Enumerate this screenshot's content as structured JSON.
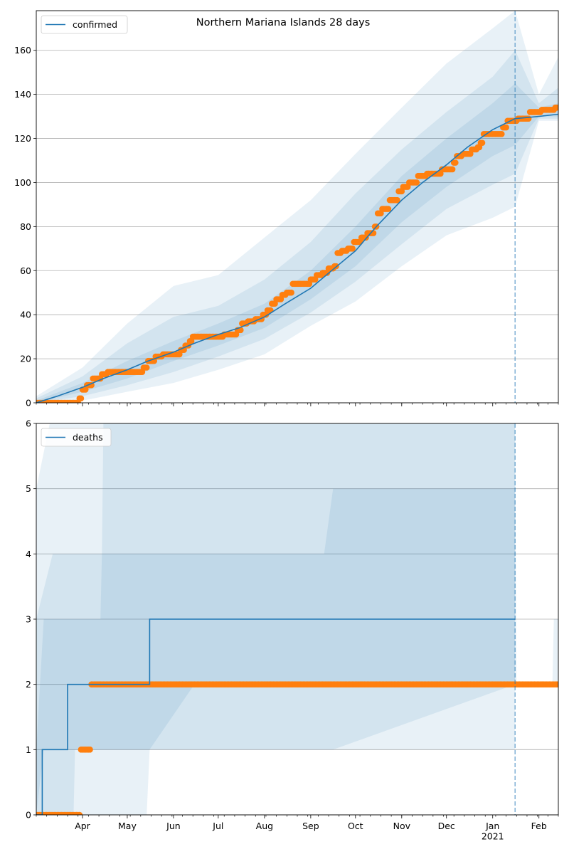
{
  "title": "Northern Mariana Islands 28 days",
  "colors": {
    "model_line": "#1f77b4",
    "observed": "#ff7f0e",
    "band": "#1f77b4",
    "grid": "#b0b0b0"
  },
  "chart_data": [
    {
      "type": "line",
      "panel": "confirmed",
      "legend": [
        "confirmed"
      ],
      "legend_position": "top-left",
      "title": "Northern Mariana Islands 28 days",
      "ylim": [
        0,
        178
      ],
      "yticks": [
        0,
        20,
        40,
        60,
        80,
        100,
        120,
        140,
        160
      ],
      "grid": "y",
      "x_range": [
        "2020-03-01",
        "2021-02-14"
      ],
      "forecast_start": "2021-01-16",
      "x_tick_labels": [
        "Apr",
        "May",
        "Jun",
        "Jul",
        "Aug",
        "Sep",
        "Oct",
        "Nov",
        "Dec",
        "Jan\n2021",
        "Feb"
      ],
      "series": [
        {
          "name": "confirmed",
          "role": "model",
          "points": [
            [
              "2020-03-01",
              0
            ],
            [
              "2020-03-15",
              3
            ],
            [
              "2020-04-01",
              7
            ],
            [
              "2020-04-15",
              11
            ],
            [
              "2020-05-01",
              15
            ],
            [
              "2020-05-15",
              19
            ],
            [
              "2020-06-01",
              23
            ],
            [
              "2020-06-15",
              27
            ],
            [
              "2020-07-01",
              31
            ],
            [
              "2020-07-15",
              34
            ],
            [
              "2020-08-01",
              39
            ],
            [
              "2020-08-15",
              45
            ],
            [
              "2020-09-01",
              52
            ],
            [
              "2020-09-15",
              60
            ],
            [
              "2020-10-01",
              69
            ],
            [
              "2020-10-15",
              80
            ],
            [
              "2020-11-01",
              92
            ],
            [
              "2020-11-15",
              100
            ],
            [
              "2020-12-01",
              108
            ],
            [
              "2020-12-15",
              116
            ],
            [
              "2021-01-01",
              124
            ],
            [
              "2021-01-16",
              129
            ],
            [
              "2021-02-01",
              130
            ],
            [
              "2021-02-14",
              131
            ]
          ]
        },
        {
          "name": "observed",
          "role": "observed",
          "points": [
            [
              "2020-03-01",
              0
            ],
            [
              "2020-03-29",
              0
            ],
            [
              "2020-03-30",
              2
            ],
            [
              "2020-04-01",
              6
            ],
            [
              "2020-04-04",
              8
            ],
            [
              "2020-04-08",
              11
            ],
            [
              "2020-04-14",
              13
            ],
            [
              "2020-04-18",
              14
            ],
            [
              "2020-05-08",
              14
            ],
            [
              "2020-05-12",
              16
            ],
            [
              "2020-05-15",
              19
            ],
            [
              "2020-05-20",
              21
            ],
            [
              "2020-05-25",
              22
            ],
            [
              "2020-06-02",
              22
            ],
            [
              "2020-06-06",
              24
            ],
            [
              "2020-06-09",
              26
            ],
            [
              "2020-06-12",
              28
            ],
            [
              "2020-06-14",
              30
            ],
            [
              "2020-07-01",
              30
            ],
            [
              "2020-07-05",
              31
            ],
            [
              "2020-07-11",
              31
            ],
            [
              "2020-07-14",
              33
            ],
            [
              "2020-07-17",
              36
            ],
            [
              "2020-07-21",
              37
            ],
            [
              "2020-07-26",
              38
            ],
            [
              "2020-07-31",
              40
            ],
            [
              "2020-08-03",
              42
            ],
            [
              "2020-08-06",
              45
            ],
            [
              "2020-08-09",
              47
            ],
            [
              "2020-08-13",
              49
            ],
            [
              "2020-08-16",
              50
            ],
            [
              "2020-08-20",
              54
            ],
            [
              "2020-08-29",
              54
            ],
            [
              "2020-09-01",
              56
            ],
            [
              "2020-09-05",
              58
            ],
            [
              "2020-09-09",
              59
            ],
            [
              "2020-09-13",
              61
            ],
            [
              "2020-09-17",
              62
            ],
            [
              "2020-09-19",
              68
            ],
            [
              "2020-09-22",
              69
            ],
            [
              "2020-09-26",
              70
            ],
            [
              "2020-09-30",
              73
            ],
            [
              "2020-10-05",
              75
            ],
            [
              "2020-10-09",
              77
            ],
            [
              "2020-10-14",
              80
            ],
            [
              "2020-10-16",
              86
            ],
            [
              "2020-10-19",
              88
            ],
            [
              "2020-10-24",
              92
            ],
            [
              "2020-10-30",
              96
            ],
            [
              "2020-11-02",
              98
            ],
            [
              "2020-11-06",
              100
            ],
            [
              "2020-11-12",
              103
            ],
            [
              "2020-11-18",
              104
            ],
            [
              "2020-11-24",
              104
            ],
            [
              "2020-11-28",
              106
            ],
            [
              "2020-12-05",
              106
            ],
            [
              "2020-12-06",
              109
            ],
            [
              "2020-12-08",
              112
            ],
            [
              "2020-12-12",
              113
            ],
            [
              "2020-12-18",
              115
            ],
            [
              "2020-12-22",
              116
            ],
            [
              "2020-12-24",
              118
            ],
            [
              "2020-12-26",
              122
            ],
            [
              "2021-01-05",
              122
            ],
            [
              "2021-01-08",
              125
            ],
            [
              "2021-01-11",
              128
            ],
            [
              "2021-01-16",
              128
            ],
            [
              "2021-01-18",
              129
            ],
            [
              "2021-01-24",
              129
            ],
            [
              "2021-01-26",
              132
            ],
            [
              "2021-02-01",
              132
            ],
            [
              "2021-02-03",
              133
            ],
            [
              "2021-02-10",
              133
            ],
            [
              "2021-02-12",
              134
            ],
            [
              "2021-02-14",
              134
            ]
          ]
        }
      ],
      "bands": [
        {
          "level": "outer",
          "points": [
            [
              "2020-03-01",
              0,
              3
            ],
            [
              "2020-04-01",
              1,
              16
            ],
            [
              "2020-05-01",
              5,
              36
            ],
            [
              "2020-06-01",
              9,
              53
            ],
            [
              "2020-07-01",
              15,
              58
            ],
            [
              "2020-08-01",
              22,
              75
            ],
            [
              "2020-09-01",
              35,
              92
            ],
            [
              "2020-10-01",
              46,
              113
            ],
            [
              "2020-11-01",
              62,
              134
            ],
            [
              "2020-12-01",
              76,
              154
            ],
            [
              "2021-01-01",
              84,
              170
            ],
            [
              "2021-01-16",
              89,
              178
            ],
            [
              "2021-02-01",
              128,
              140
            ],
            [
              "2021-02-14",
              128,
              157
            ]
          ]
        },
        {
          "level": "middle",
          "points": [
            [
              "2020-03-01",
              0,
              2
            ],
            [
              "2020-04-01",
              3,
              12
            ],
            [
              "2020-05-01",
              8,
              27
            ],
            [
              "2020-06-01",
              14,
              39
            ],
            [
              "2020-07-01",
              21,
              44
            ],
            [
              "2020-08-01",
              29,
              56
            ],
            [
              "2020-09-01",
              41,
              73
            ],
            [
              "2020-10-01",
              55,
              95
            ],
            [
              "2020-11-01",
              72,
              115
            ],
            [
              "2020-12-01",
              88,
              132
            ],
            [
              "2021-01-01",
              99,
              148
            ],
            [
              "2021-01-16",
              104,
              160
            ],
            [
              "2021-02-01",
              129,
              136
            ],
            [
              "2021-02-14",
              129,
              143
            ]
          ]
        },
        {
          "level": "inner",
          "points": [
            [
              "2020-03-01",
              0,
              1
            ],
            [
              "2020-04-01",
              5,
              9
            ],
            [
              "2020-05-01",
              11,
              19
            ],
            [
              "2020-06-01",
              19,
              28
            ],
            [
              "2020-07-01",
              26,
              36
            ],
            [
              "2020-08-01",
              34,
              45
            ],
            [
              "2020-09-01",
              47,
              60
            ],
            [
              "2020-10-01",
              62,
              80
            ],
            [
              "2020-11-01",
              82,
              103
            ],
            [
              "2020-12-01",
              98,
              120
            ],
            [
              "2021-01-01",
              112,
              136
            ],
            [
              "2021-01-16",
              117,
              145
            ],
            [
              "2021-02-01",
              130,
              134
            ],
            [
              "2021-02-14",
              130,
              136
            ]
          ]
        }
      ]
    },
    {
      "type": "line",
      "panel": "deaths",
      "legend": [
        "deaths"
      ],
      "legend_position": "top-left",
      "ylim": [
        0,
        6
      ],
      "yticks": [
        0,
        1,
        2,
        3,
        4,
        5,
        6
      ],
      "grid": "y",
      "x_range": [
        "2020-03-01",
        "2021-02-14"
      ],
      "forecast_start": "2021-01-16",
      "x_tick_labels": [
        "Apr",
        "May",
        "Jun",
        "Jul",
        "Aug",
        "Sep",
        "Oct",
        "Nov",
        "Dec",
        "Jan\n2021",
        "Feb"
      ],
      "series": [
        {
          "name": "deaths",
          "role": "model",
          "step": true,
          "points": [
            [
              "2020-03-01",
              0
            ],
            [
              "2020-03-04",
              0
            ],
            [
              "2020-03-05",
              1
            ],
            [
              "2020-03-21",
              1
            ],
            [
              "2020-03-22",
              2
            ],
            [
              "2020-05-14",
              2
            ],
            [
              "2020-05-16",
              3
            ],
            [
              "2021-01-16",
              3
            ]
          ]
        },
        {
          "name": "observed",
          "role": "observed",
          "points": [
            [
              "2020-03-01",
              0
            ],
            [
              "2020-03-30",
              0
            ],
            [
              "2020-03-31",
              1
            ],
            [
              "2020-04-06",
              1
            ],
            [
              "2020-04-07",
              2
            ],
            [
              "2021-02-14",
              2
            ]
          ]
        }
      ],
      "bands": [
        {
          "level": "outer",
          "points": [
            [
              "2020-03-01",
              0,
              5
            ],
            [
              "2020-03-10",
              0,
              6
            ],
            [
              "2020-05-14",
              0,
              6
            ],
            [
              "2020-05-16",
              1,
              6
            ],
            [
              "2020-06-15",
              2,
              6
            ],
            [
              "2021-01-16",
              2,
              6
            ],
            [
              "2021-01-17",
              2,
              2
            ],
            [
              "2021-02-10",
              2,
              2
            ],
            [
              "2021-02-11",
              2,
              3
            ],
            [
              "2021-02-14",
              2,
              3
            ]
          ]
        },
        {
          "level": "middle",
          "points": [
            [
              "2020-03-01",
              0,
              3
            ],
            [
              "2020-03-12",
              0,
              4
            ],
            [
              "2020-03-26",
              0,
              4
            ],
            [
              "2020-03-27",
              1,
              4
            ],
            [
              "2020-04-14",
              1,
              4
            ],
            [
              "2020-04-15",
              1,
              6
            ],
            [
              "2021-01-16",
              1,
              6
            ]
          ]
        },
        {
          "level": "inner",
          "points": [
            [
              "2020-03-01",
              0,
              1
            ],
            [
              "2020-03-06",
              1,
              3
            ],
            [
              "2020-04-13",
              1,
              3
            ],
            [
              "2020-04-14",
              1,
              4
            ],
            [
              "2020-09-10",
              1,
              4
            ],
            [
              "2020-09-16",
              1,
              5
            ],
            [
              "2021-01-16",
              2,
              5
            ]
          ]
        }
      ]
    }
  ]
}
